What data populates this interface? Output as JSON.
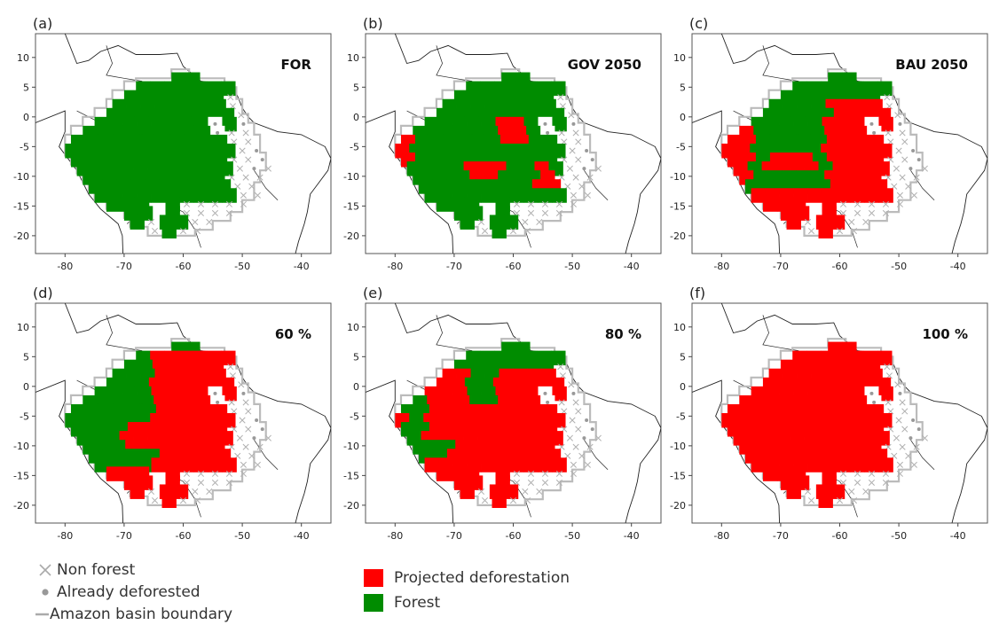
{
  "panels": [
    {
      "letter": "(a)",
      "title": "FOR"
    },
    {
      "letter": "(b)",
      "title": "GOV 2050"
    },
    {
      "letter": "(c)",
      "title": "BAU 2050"
    },
    {
      "letter": "(d)",
      "title": "60 %"
    },
    {
      "letter": "(e)",
      "title": "80 %"
    },
    {
      "letter": "(f)",
      "title": "100 %"
    }
  ],
  "axes": {
    "x_ticks": [
      -80,
      -70,
      -60,
      -50,
      -40
    ],
    "y_ticks": [
      10,
      5,
      0,
      -5,
      -10,
      -15,
      -20
    ],
    "x_range": [
      -85,
      -35
    ],
    "y_range": [
      -23,
      14
    ]
  },
  "legend": {
    "non_forest": "Non forest",
    "already_deforested": "Already deforested",
    "basin_boundary": "Amazon basin boundary",
    "projected_deforestation": "Projected deforestation",
    "forest": "Forest"
  },
  "colors": {
    "forest": "#008c00",
    "projected_deforestation": "#ff0000",
    "non_forest": "#b0b0b0",
    "already_deforested": "#999999",
    "basin_boundary": "#bbbbbb",
    "coastline": "#222222"
  },
  "icons": {
    "non_forest": "cross-marker",
    "already_deforested": "dot-marker"
  }
}
